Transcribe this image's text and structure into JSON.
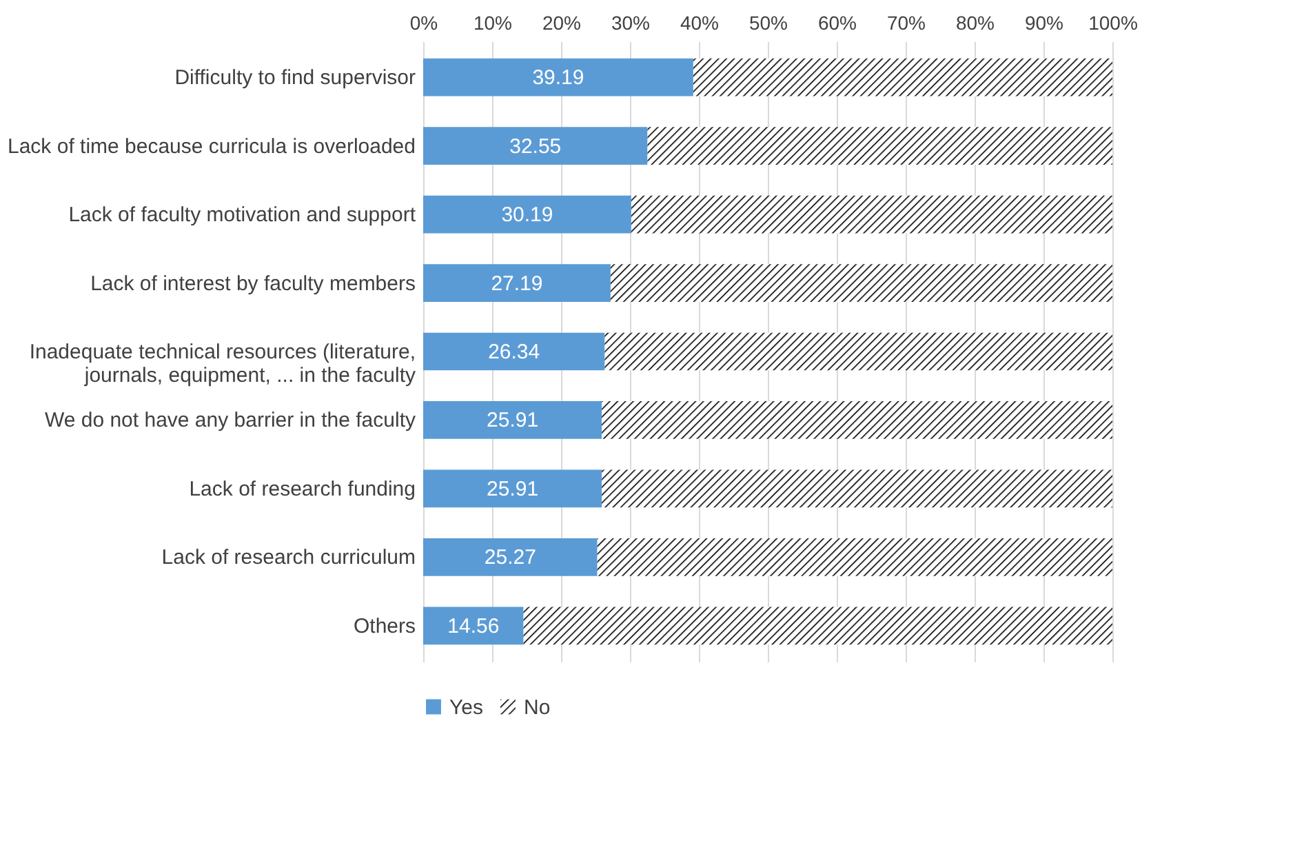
{
  "chart_data": {
    "type": "bar",
    "orientation": "horizontal",
    "stacked": true,
    "categories": [
      "Difficulty to find supervisor",
      "Lack of time because curricula is overloaded",
      "Lack of faculty motivation and support",
      "Lack of interest by faculty members",
      "Inadequate technical resources (literature, journals, equipment, ... in the faculty",
      "We do not have any barrier in the faculty",
      "Lack of research funding",
      "Lack of research curriculum",
      "Others"
    ],
    "series": [
      {
        "name": "Yes",
        "color": "#5b9bd5",
        "values": [
          39.19,
          32.55,
          30.19,
          27.19,
          26.34,
          25.91,
          25.91,
          25.27,
          14.56
        ],
        "value_labels": [
          "39.19",
          "32.55",
          "30.19",
          "27.19",
          "26.34",
          "25.91",
          "25.91",
          "25.27",
          "14.56"
        ]
      },
      {
        "name": "No",
        "color": "#000000",
        "values": [
          60.81,
          67.45,
          69.81,
          72.81,
          73.66,
          74.09,
          74.09,
          74.73,
          85.44
        ]
      }
    ],
    "xlim": [
      0,
      100
    ],
    "xticks": [
      {
        "value": 0,
        "label": "0%"
      },
      {
        "value": 10,
        "label": "10%"
      },
      {
        "value": 20,
        "label": "20%"
      },
      {
        "value": 30,
        "label": "30%"
      },
      {
        "value": 40,
        "label": "40%"
      },
      {
        "value": 50,
        "label": "50%"
      },
      {
        "value": 60,
        "label": "60%"
      },
      {
        "value": 70,
        "label": "70%"
      },
      {
        "value": 80,
        "label": "80%"
      },
      {
        "value": 90,
        "label": "90%"
      },
      {
        "value": 100,
        "label": "100%"
      }
    ],
    "grid": "x",
    "legend": "bottom"
  }
}
